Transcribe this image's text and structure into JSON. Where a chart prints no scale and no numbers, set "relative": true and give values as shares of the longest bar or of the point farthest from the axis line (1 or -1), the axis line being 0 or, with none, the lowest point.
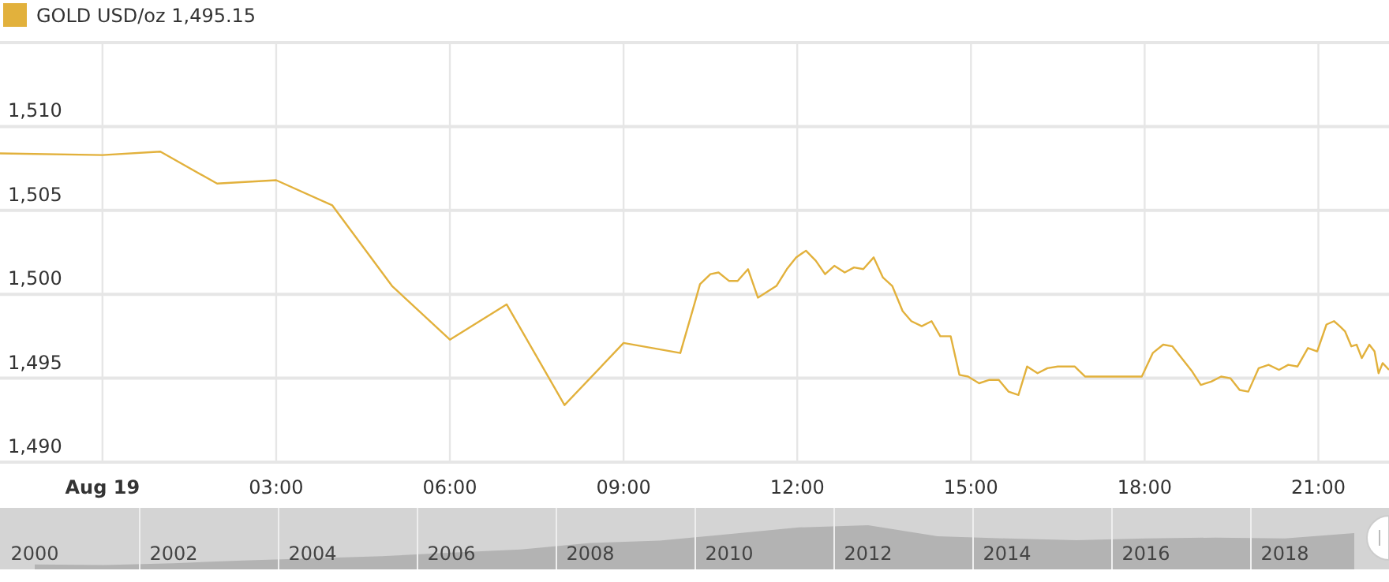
{
  "chart_data": [
    {
      "type": "line",
      "legend": "top left",
      "grid": true,
      "annotations": [
        "1,495.15"
      ],
      "xlim": [
        -1.77,
        22.22
      ],
      "ylim": [
        1490,
        1515
      ],
      "xticks": [
        {
          "value": 0,
          "label": "Aug 19"
        },
        {
          "value": 3,
          "label": "03:00"
        },
        {
          "value": 6,
          "label": "06:00"
        },
        {
          "value": 9,
          "label": "09:00"
        },
        {
          "value": 12,
          "label": "12:00"
        },
        {
          "value": 15,
          "label": "15:00"
        },
        {
          "value": 18,
          "label": "18:00"
        },
        {
          "value": 21,
          "label": "21:00"
        }
      ],
      "yticks": [
        {
          "value": 1490,
          "label": "1,490"
        },
        {
          "value": 1495,
          "label": "1,495"
        },
        {
          "value": 1500,
          "label": "1,500"
        },
        {
          "value": 1505,
          "label": "1,505"
        },
        {
          "value": 1510,
          "label": "1,510"
        }
      ],
      "series": [
        {
          "name": "GOLD USD/oz",
          "color": "#e2b13c",
          "x": [
            -1.77,
            0,
            1.0,
            1.98,
            3.0,
            3.97,
            5.0,
            6.0,
            6.98,
            7.98,
            9.0,
            9.98,
            10.23,
            10.32,
            10.5,
            10.64,
            10.82,
            10.97,
            11.15,
            11.32,
            11.64,
            11.82,
            11.98,
            12.15,
            12.32,
            12.48,
            12.64,
            12.82,
            12.98,
            13.14,
            13.32,
            13.48,
            13.64,
            13.82,
            13.97,
            14.15,
            14.32,
            14.47,
            14.65,
            14.8,
            14.95,
            15.14,
            15.32,
            15.48,
            15.65,
            15.82,
            15.97,
            16.15,
            16.32,
            16.5,
            16.79,
            16.97,
            17.95,
            18.14,
            18.32,
            18.48,
            18.82,
            18.97,
            19.15,
            19.32,
            19.48,
            19.64,
            19.79,
            19.97,
            20.14,
            20.32,
            20.48,
            20.64,
            20.82,
            20.98,
            21.14,
            21.27,
            21.37,
            21.46,
            21.57,
            21.66,
            21.75,
            21.88,
            21.97,
            22.04,
            22.11,
            22.22
          ],
          "values": [
            1508.4,
            1508.3,
            1508.5,
            1506.6,
            1506.8,
            1505.3,
            1500.5,
            1497.3,
            1499.4,
            1493.4,
            1497.1,
            1496.5,
            1499.5,
            1500.6,
            1501.2,
            1501.3,
            1500.8,
            1500.8,
            1501.5,
            1499.8,
            1500.5,
            1501.5,
            1502.2,
            1502.6,
            1502.0,
            1501.2,
            1501.7,
            1501.3,
            1501.6,
            1501.5,
            1502.2,
            1501.0,
            1500.5,
            1499.0,
            1498.4,
            1498.1,
            1498.4,
            1497.5,
            1497.5,
            1495.2,
            1495.1,
            1494.7,
            1494.9,
            1494.9,
            1494.2,
            1494.0,
            1495.7,
            1495.3,
            1495.6,
            1495.7,
            1495.7,
            1495.1,
            1495.1,
            1496.5,
            1497.0,
            1496.9,
            1495.4,
            1494.6,
            1494.8,
            1495.1,
            1495.0,
            1494.3,
            1494.2,
            1495.6,
            1495.8,
            1495.5,
            1495.8,
            1495.7,
            1496.8,
            1496.6,
            1498.2,
            1498.4,
            1498.1,
            1497.8,
            1496.9,
            1497.0,
            1496.2,
            1497.0,
            1496.6,
            1495.3,
            1495.9,
            1495.5
          ]
        }
      ]
    },
    {
      "type": "area",
      "relative": true,
      "grid": "x",
      "tick_labels": "x",
      "categories": [
        "2000",
        null,
        "2002",
        null,
        "2004",
        null,
        "2006",
        null,
        "2008",
        null,
        "2010",
        null,
        "2012",
        null,
        "2014",
        null,
        "2016",
        null,
        "2018",
        null
      ],
      "series": [
        {
          "color": "#b3b3b3",
          "values": [
            0.11,
            0.1,
            0.14,
            0.2,
            0.25,
            0.3,
            0.38,
            0.45,
            0.6,
            0.65,
            0.8,
            0.95,
            1,
            0.75,
            0.7,
            0.66,
            0.7,
            0.72,
            0.7,
            0.82
          ]
        }
      ]
    }
  ]
}
